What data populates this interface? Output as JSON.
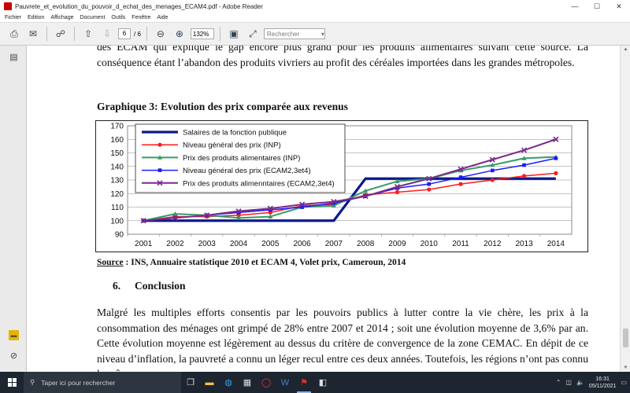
{
  "window": {
    "title": "Pauvrete_et_evolution_du_pouvoir_d_echat_des_menages_ECAM4.pdf - Adobe Reader",
    "minimize": "—",
    "maximize": "☐",
    "close": "✕"
  },
  "menu": [
    "Fichier",
    "Edition",
    "Affichage",
    "Document",
    "Outils",
    "Fenêtre",
    "Aide"
  ],
  "toolbar": {
    "page_current": "6",
    "page_total": "/ 6",
    "zoom": "132%",
    "search_placeholder": "Rechercher"
  },
  "document": {
    "para_top": "des ECAM qui explique le gap encore plus grand pour les produits alimentaires suivant cette source. La conséquence étant l’abandon des produits vivriers au profit des céréales importées dans les grandes métropoles.",
    "figure_title": "Graphique 3: Evolution des prix comparée aux revenus",
    "source_label": "Source",
    "source_text": " : INS, Annuaire statistique 2010 et ECAM 4, Volet prix, Cameroun, 2014",
    "section_number": "6.",
    "section_title": "Conclusion",
    "para_bottom": "Malgré les multiples efforts consentis par les pouvoirs publics à lutter contre la vie chère, les prix à la consommation des ménages ont grimpé de 28% entre 2007 et 2014 ; soit une évolution moyenne de 3,6% par an. Cette évolution moyenne est légèrement au dessus du critère de convergence de la zone CEMAC. En dépit de ce niveau d’inflation, la pauvreté a connu un léger recul entre ces deux années. Toutefois, les régions n’ont pas connu la même"
  },
  "chart_data": {
    "type": "line",
    "categories": [
      "2001",
      "2002",
      "2003",
      "2004",
      "2005",
      "2006",
      "2007",
      "2008",
      "2009",
      "2010",
      "2011",
      "2012",
      "2013",
      "2014"
    ],
    "ylim": [
      90,
      170
    ],
    "yticks": [
      90,
      100,
      110,
      120,
      130,
      140,
      150,
      160,
      170
    ],
    "grid": true,
    "legend_position": "top-left",
    "series": [
      {
        "name": "Salaires de la fonction publique",
        "color": "#0a1a8c",
        "marker": "none",
        "width": 3.2,
        "values": [
          100,
          100,
          100,
          100,
          100,
          100,
          100,
          131,
          131,
          131,
          131,
          131,
          131,
          131
        ]
      },
      {
        "name": "Niveau général des prix (INP)",
        "color": "#ff1a1a",
        "marker": "circle",
        "width": 1.5,
        "values": [
          100,
          103,
          103,
          104,
          106,
          111,
          112,
          119,
          121,
          123,
          127,
          130,
          133,
          135
        ]
      },
      {
        "name": "Prix des produits alimentaires (INP)",
        "color": "#3a9a6a",
        "marker": "triangle",
        "width": 2,
        "values": [
          100,
          105,
          104,
          102,
          103,
          110,
          111,
          122,
          129,
          131,
          137,
          141,
          146,
          147
        ]
      },
      {
        "name": "Niveau général des prix (ECAM2,3et4)",
        "color": "#1a1aff",
        "marker": "square",
        "width": 1.5,
        "values": [
          100,
          102,
          104,
          106,
          108,
          110,
          113,
          118,
          124,
          127,
          132,
          137,
          141,
          146
        ]
      },
      {
        "name": "Prix des produits alimenntaires (ECAM2,3et4)",
        "color": "#7a2a8a",
        "marker": "cross",
        "width": 2,
        "values": [
          100,
          102,
          104,
          107,
          109,
          112,
          114,
          118,
          125,
          131,
          138,
          145,
          152,
          160
        ]
      }
    ]
  },
  "taskbar": {
    "search_placeholder": "Taper ici pour rechercher",
    "time": "16:31",
    "date": "05/11/2021"
  }
}
